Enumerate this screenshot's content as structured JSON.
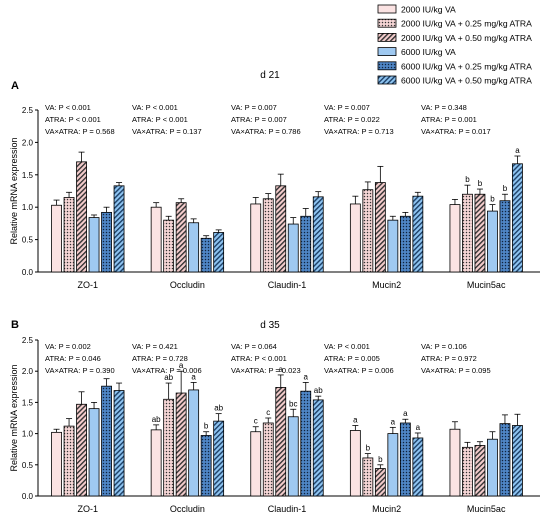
{
  "legend": [
    {
      "label": "2000 IU/kg VA",
      "fill": "#fbe3e3",
      "pattern": "none"
    },
    {
      "label": "2000 IU/kg VA + 0.25 mg/kg ATRA",
      "fill": "#f6d6d6",
      "pattern": "dots"
    },
    {
      "label": "2000 IU/kg VA + 0.50 mg/kg ATRA",
      "fill": "#f4cccc",
      "pattern": "hatch"
    },
    {
      "label": "6000 IU/kg VA",
      "fill": "#9fc9f1",
      "pattern": "none"
    },
    {
      "label": "6000 IU/kg VA + 0.25 mg/kg ATRA",
      "fill": "#4f86c6",
      "pattern": "dots"
    },
    {
      "label": "6000 IU/kg VA + 0.50 mg/kg ATRA",
      "fill": "#8dc3f0",
      "pattern": "hatch"
    }
  ],
  "chart_data": [
    {
      "type": "bar",
      "panel": "A",
      "title": "d 21",
      "ylabel": "Relative mRNA expression",
      "ylim": [
        0,
        2.5
      ],
      "yticks": [
        "0.0",
        "0.5",
        "1.0",
        "1.5",
        "2.0",
        "2.5"
      ],
      "categories": [
        "ZO-1",
        "Occludin",
        "Claudin-1",
        "Mucin2",
        "Mucin5ac"
      ],
      "series": [
        {
          "name": "2000 IU/kg VA",
          "values": [
            1.03,
            1.0,
            1.05,
            1.05,
            1.04
          ],
          "errors": [
            0.08,
            0.07,
            0.1,
            0.12,
            0.08
          ]
        },
        {
          "name": "2000 IU/kg VA + 0.25 mg/kg ATRA",
          "values": [
            1.15,
            0.8,
            1.13,
            1.27,
            1.2
          ],
          "errors": [
            0.08,
            0.06,
            0.08,
            0.12,
            0.14
          ]
        },
        {
          "name": "2000 IU/kg VA + 0.50 mg/kg ATRA",
          "values": [
            1.7,
            1.07,
            1.33,
            1.38,
            1.2
          ],
          "errors": [
            0.15,
            0.06,
            0.18,
            0.25,
            0.08
          ]
        },
        {
          "name": "6000 IU/kg VA",
          "values": [
            0.84,
            0.76,
            0.74,
            0.8,
            0.94
          ],
          "errors": [
            0.04,
            0.06,
            0.1,
            0.06,
            0.1
          ]
        },
        {
          "name": "6000 IU/kg VA + 0.25 mg/kg ATRA",
          "values": [
            0.92,
            0.52,
            0.86,
            0.86,
            1.1
          ],
          "errors": [
            0.08,
            0.04,
            0.12,
            0.06,
            0.1
          ]
        },
        {
          "name": "6000 IU/kg VA + 0.50 mg/kg ATRA",
          "values": [
            1.33,
            0.61,
            1.16,
            1.17,
            1.67
          ],
          "errors": [
            0.05,
            0.04,
            0.08,
            0.06,
            0.12
          ]
        }
      ],
      "letters": [
        [
          "",
          "",
          "",
          "",
          "",
          ""
        ],
        [
          "",
          "",
          "",
          "",
          "",
          ""
        ],
        [
          "",
          "",
          "",
          "",
          "",
          ""
        ],
        [
          "",
          "",
          "",
          "",
          "",
          ""
        ],
        [
          "",
          "b",
          "b",
          "b",
          "b",
          "a"
        ]
      ],
      "stats": [
        [
          "VA: P < 0.001",
          "ATRA: P < 0.001",
          "VA×ATRA: P = 0.568"
        ],
        [
          "VA: P < 0.001",
          "ATRA: P < 0.001",
          "VA×ATRA: P = 0.137"
        ],
        [
          "VA: P = 0.007",
          "ATRA: P = 0.007",
          "VA×ATRA: P = 0.786"
        ],
        [
          "VA: P = 0.007",
          "ATRA: P = 0.022",
          "VA×ATRA: P = 0.713"
        ],
        [
          "VA: P = 0.348",
          "ATRA: P = 0.001",
          "VA×ATRA: P = 0.017"
        ]
      ]
    },
    {
      "type": "bar",
      "panel": "B",
      "title": "d 35",
      "ylabel": "Relative mRNA expression",
      "ylim": [
        0,
        2.5
      ],
      "yticks": [
        "0.0",
        "0.5",
        "1.0",
        "1.5",
        "2.0",
        "2.5"
      ],
      "categories": [
        "ZO-1",
        "Occludin",
        "Claudin-1",
        "Mucin2",
        "Mucin5ac"
      ],
      "series": [
        {
          "name": "2000 IU/kg VA",
          "values": [
            1.02,
            1.06,
            1.03,
            1.05,
            1.07
          ],
          "errors": [
            0.05,
            0.08,
            0.08,
            0.08,
            0.12
          ]
        },
        {
          "name": "2000 IU/kg VA + 0.25 mg/kg ATRA",
          "values": [
            1.12,
            1.55,
            1.17,
            0.61,
            0.78
          ],
          "errors": [
            0.12,
            0.26,
            0.08,
            0.07,
            0.08
          ]
        },
        {
          "name": "2000 IU/kg VA + 0.50 mg/kg ATRA",
          "values": [
            1.47,
            1.65,
            1.74,
            0.44,
            0.81
          ],
          "errors": [
            0.2,
            0.35,
            0.2,
            0.06,
            0.06
          ]
        },
        {
          "name": "6000 IU/kg VA",
          "values": [
            1.4,
            1.7,
            1.27,
            1.0,
            0.91
          ],
          "errors": [
            0.1,
            0.12,
            0.12,
            0.1,
            0.12
          ]
        },
        {
          "name": "6000 IU/kg VA + 0.25 mg/kg ATRA",
          "values": [
            1.76,
            0.97,
            1.68,
            1.17,
            1.16
          ],
          "errors": [
            0.12,
            0.06,
            0.14,
            0.06,
            0.14
          ]
        },
        {
          "name": "6000 IU/kg VA + 0.50 mg/kg ATRA",
          "values": [
            1.69,
            1.2,
            1.54,
            0.93,
            1.13
          ],
          "errors": [
            0.12,
            0.12,
            0.06,
            0.08,
            0.18
          ]
        }
      ],
      "letters": [
        [
          "",
          "",
          "",
          "",
          "",
          ""
        ],
        [
          "ab",
          "ab",
          "a",
          "a",
          "b",
          "ab"
        ],
        [
          "c",
          "c",
          "a",
          "bc",
          "a",
          "ab"
        ],
        [
          "a",
          "b",
          "b",
          "a",
          "a",
          "a"
        ],
        [
          "",
          "",
          "",
          "",
          "",
          ""
        ]
      ],
      "stats": [
        [
          "VA: P = 0.002",
          "ATRA: P = 0.046",
          "VA×ATRA: P = 0.390"
        ],
        [
          "VA: P = 0.421",
          "ATRA: P = 0.728",
          "VA×ATRA: P = 0.006"
        ],
        [
          "VA: P = 0.064",
          "ATRA: P < 0.001",
          "VA×ATRA: P = 0.023"
        ],
        [
          "VA: P < 0.001",
          "ATRA: P = 0.005",
          "VA×ATRA: P = 0.006"
        ],
        [
          "VA: P = 0.106",
          "ATRA: P = 0.972",
          "VA×ATRA: P = 0.095"
        ]
      ]
    }
  ]
}
